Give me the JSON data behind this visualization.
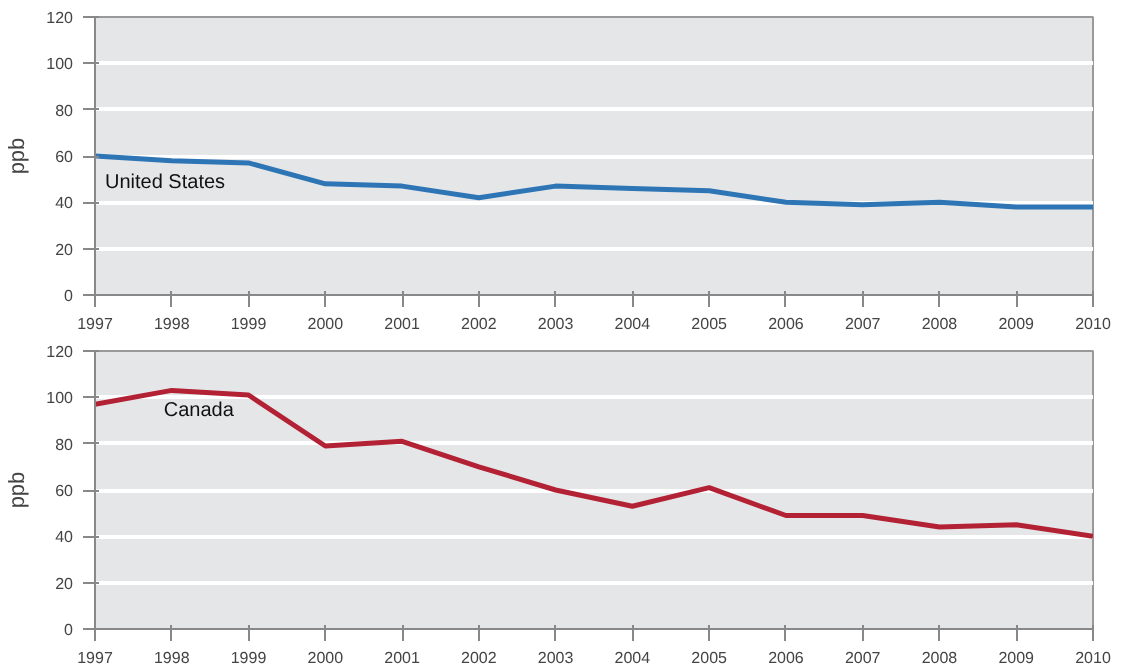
{
  "chart_data": [
    {
      "type": "line",
      "ylabel": "ppb",
      "x": [
        1997,
        1998,
        1999,
        2000,
        2001,
        2002,
        2003,
        2004,
        2005,
        2006,
        2007,
        2008,
        2009,
        2010
      ],
      "xlim": [
        1997,
        2010
      ],
      "xticks": [
        1997,
        1998,
        1999,
        2000,
        2001,
        2002,
        2003,
        2004,
        2005,
        2006,
        2007,
        2008,
        2009,
        2010
      ],
      "ylim": [
        0,
        120
      ],
      "yticks": [
        0,
        20,
        40,
        60,
        80,
        100,
        120
      ],
      "grid": "y",
      "legend": false,
      "series": [
        {
          "name": "United States",
          "color": "#2e75b6",
          "values": [
            60,
            58,
            57,
            48,
            47,
            42,
            47,
            46,
            45,
            40,
            39,
            40,
            38,
            38
          ]
        }
      ]
    },
    {
      "type": "line",
      "ylabel": "ppb",
      "x": [
        1997,
        1998,
        1999,
        2000,
        2001,
        2002,
        2003,
        2004,
        2005,
        2006,
        2007,
        2008,
        2009,
        2010
      ],
      "xlim": [
        1997,
        2010
      ],
      "xticks": [
        1997,
        1998,
        1999,
        2000,
        2001,
        2002,
        2003,
        2004,
        2005,
        2006,
        2007,
        2008,
        2009,
        2010
      ],
      "ylim": [
        0,
        120
      ],
      "yticks": [
        0,
        20,
        40,
        60,
        80,
        100,
        120
      ],
      "grid": "y",
      "legend": false,
      "series": [
        {
          "name": "Canada",
          "color": "#b22234",
          "values": [
            97,
            103,
            101,
            79,
            81,
            70,
            60,
            53,
            61,
            49,
            49,
            44,
            45,
            40
          ]
        }
      ]
    }
  ]
}
